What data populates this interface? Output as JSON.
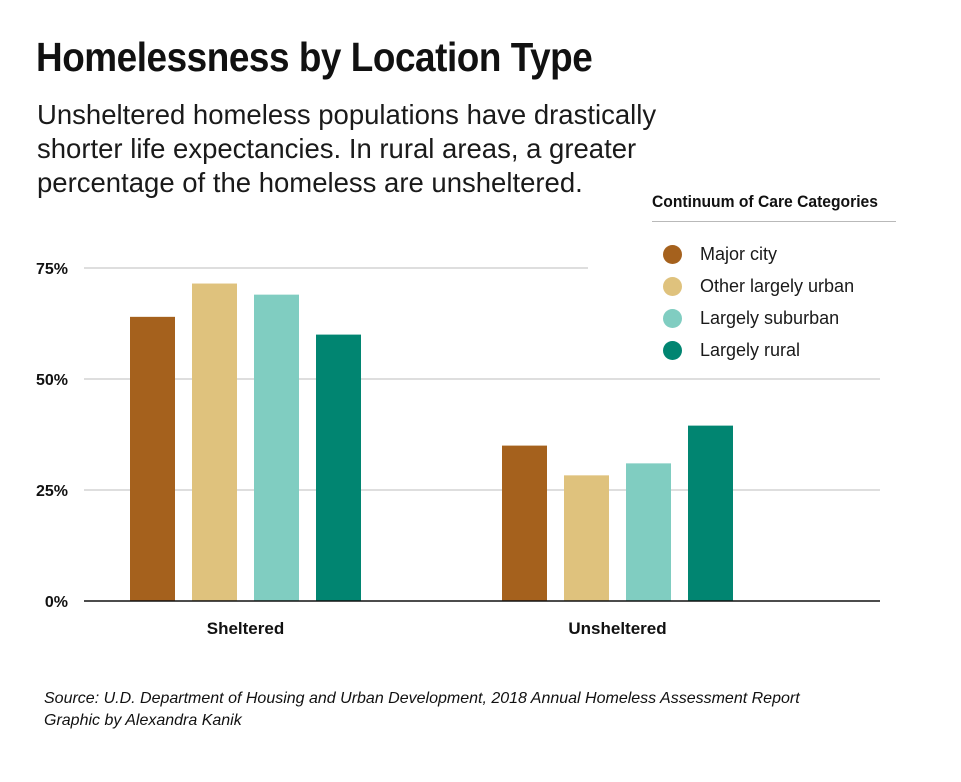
{
  "header": {
    "title": "Homelessness by Location Type",
    "subtitle": "Unsheltered homeless populations have drastically shorter life expectancies. In rural areas, a greater percentage of the homeless are unsheltered."
  },
  "legend": {
    "title": "Continuum of Care Categories",
    "items": [
      {
        "label": "Major city",
        "color": "#a5611d"
      },
      {
        "label": "Other largely urban",
        "color": "#dfc27d"
      },
      {
        "label": "Largely suburban",
        "color": "#80cdc1"
      },
      {
        "label": "Largely rural",
        "color": "#018571"
      }
    ]
  },
  "chart_data": {
    "type": "bar",
    "title": "Homelessness by Location Type",
    "categories": [
      "Sheltered",
      "Unsheltered"
    ],
    "series": [
      {
        "name": "Major city",
        "values": [
          64,
          35
        ],
        "color": "#a5611d"
      },
      {
        "name": "Other largely urban",
        "values": [
          71.5,
          28.3
        ],
        "color": "#dfc27d"
      },
      {
        "name": "Largely suburban",
        "values": [
          69,
          31
        ],
        "color": "#80cdc1"
      },
      {
        "name": "Largely rural",
        "values": [
          60,
          39.5
        ],
        "color": "#018571"
      }
    ],
    "ylim": [
      0,
      75
    ],
    "yticks": [
      {
        "value": 0,
        "label": "0%"
      },
      {
        "value": 25,
        "label": "25%"
      },
      {
        "value": 50,
        "label": "50%"
      },
      {
        "value": 75,
        "label": "75%"
      }
    ],
    "xlabel": "",
    "ylabel": "",
    "grid": true,
    "legend_position": "top-right"
  },
  "footer": {
    "source": "Source: U.D. Department of Housing and Urban Development, 2018 Annual Homeless Assessment Report",
    "credit": "Graphic by Alexandra Kanik"
  }
}
